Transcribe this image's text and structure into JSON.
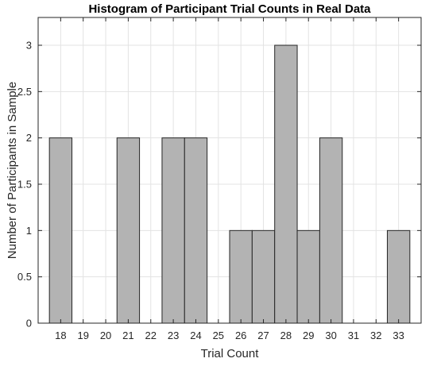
{
  "chart_data": {
    "type": "bar",
    "title": "Histogram of Participant Trial Counts in Real Data",
    "xlabel": "Trial Count",
    "ylabel": "Number of Participants in Sample",
    "categories": [
      "18",
      "19",
      "20",
      "21",
      "22",
      "23",
      "24",
      "25",
      "26",
      "27",
      "28",
      "29",
      "30",
      "31",
      "32",
      "33"
    ],
    "values": [
      2,
      0,
      0,
      2,
      0,
      2,
      2,
      0,
      1,
      1,
      3,
      1,
      2,
      0,
      0,
      1
    ],
    "xlim": [
      17,
      34
    ],
    "ylim": [
      0,
      3.3
    ],
    "yticks": [
      "0",
      "0.5",
      "1",
      "1.5",
      "2",
      "2.5",
      "3"
    ],
    "grid": true,
    "bar_color": "#b3b3b3",
    "bar_edge_color": "#262626"
  }
}
